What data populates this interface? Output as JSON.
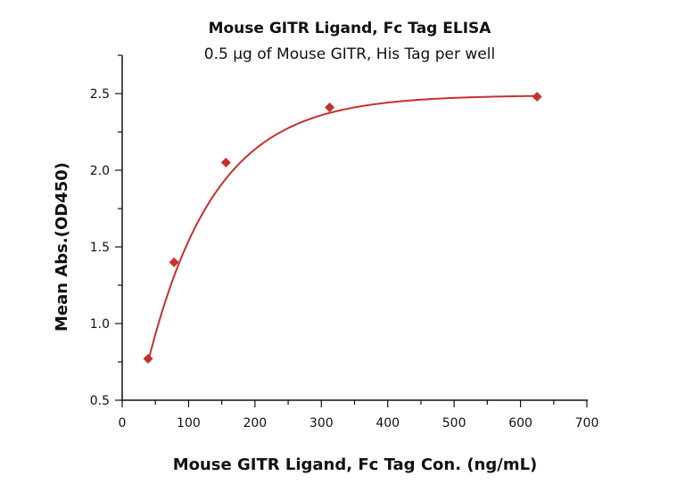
{
  "chart_data": {
    "type": "scatter",
    "title": "Mouse GITR Ligand, Fc Tag ELISA",
    "subtitle": "0.5 µg of Mouse GITR, His Tag per well",
    "xlabel": "Mouse GITR Ligand, Fc Tag Con. (ng/mL)",
    "ylabel": "Mean Abs.(OD450)",
    "xlim": [
      0,
      700
    ],
    "ylim": [
      0.5,
      2.75
    ],
    "xticks": [
      "0",
      "100",
      "200",
      "300",
      "400",
      "500",
      "600",
      "700"
    ],
    "yticks": [
      "0.5",
      "1.0",
      "1.5",
      "2.0",
      "2.5"
    ],
    "grid": false,
    "fit_line": true,
    "color": "#c8302f",
    "series": [
      {
        "x": [
          39.06,
          78.13,
          156.25,
          312.5,
          625
        ],
        "y": [
          0.77,
          1.4,
          2.05,
          2.41,
          2.48
        ]
      }
    ]
  }
}
